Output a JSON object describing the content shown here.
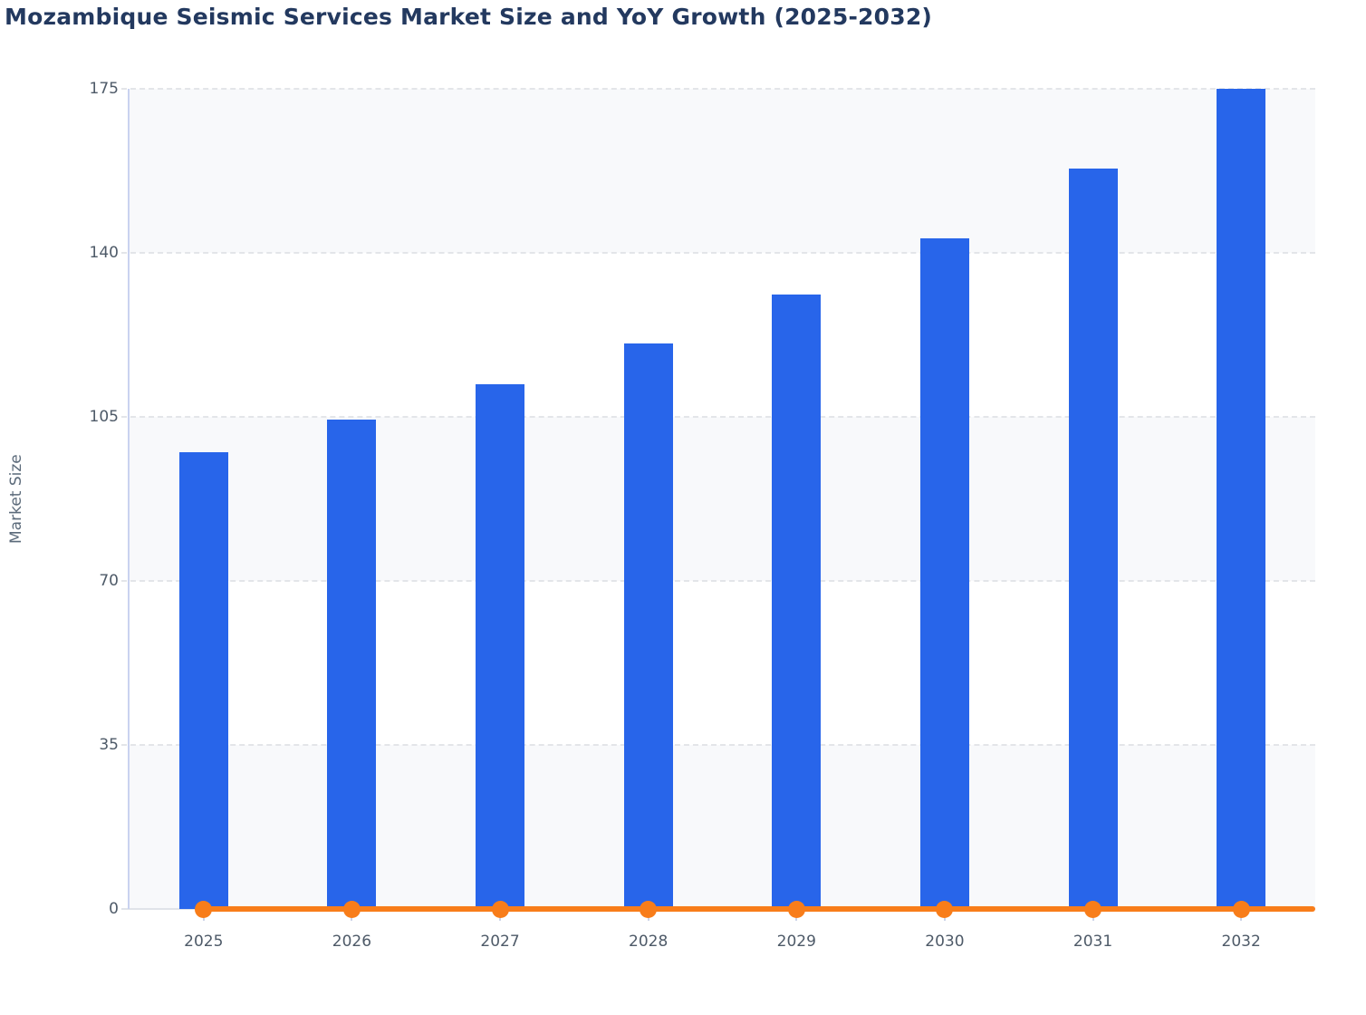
{
  "title": "Mozambique Seismic Services Market Size and YoY Growth (2025-2032)",
  "colors": {
    "title_text": "#23395f",
    "bar_fill": "#2865ea",
    "line_stroke": "#f87d1a",
    "axis_line": "#c9d2f0",
    "gridline": "#e3e5e9",
    "plot_band": "#f8f9fb",
    "tick_label_text": "#4e5a68",
    "axis_title_text": "#5b6a7a",
    "background": "#ffffff"
  },
  "chart_data": {
    "type": "bar",
    "title": "Mozambique Seismic Services Market Size and YoY Growth (2025-2032)",
    "xlabel": "",
    "ylabel": "Market Size",
    "categories": [
      "2025",
      "2026",
      "2027",
      "2028",
      "2029",
      "2030",
      "2031",
      "2032"
    ],
    "series": [
      {
        "name": "Market Size",
        "type": "bar",
        "color": "#2865ea",
        "values": [
          97.4,
          104.5,
          111.9,
          120.6,
          131.1,
          143.1,
          157.9,
          175
        ]
      },
      {
        "name": "YoY Growth",
        "type": "line",
        "color": "#f87d1a",
        "values": [
          0,
          0,
          0,
          0,
          0,
          0,
          0,
          0
        ]
      }
    ],
    "ylim": [
      0,
      175
    ],
    "yticks": [
      0,
      35,
      70,
      105,
      140,
      175
    ],
    "grid": "horizontal-dashed",
    "alternating_bands": true,
    "legend": "none"
  }
}
